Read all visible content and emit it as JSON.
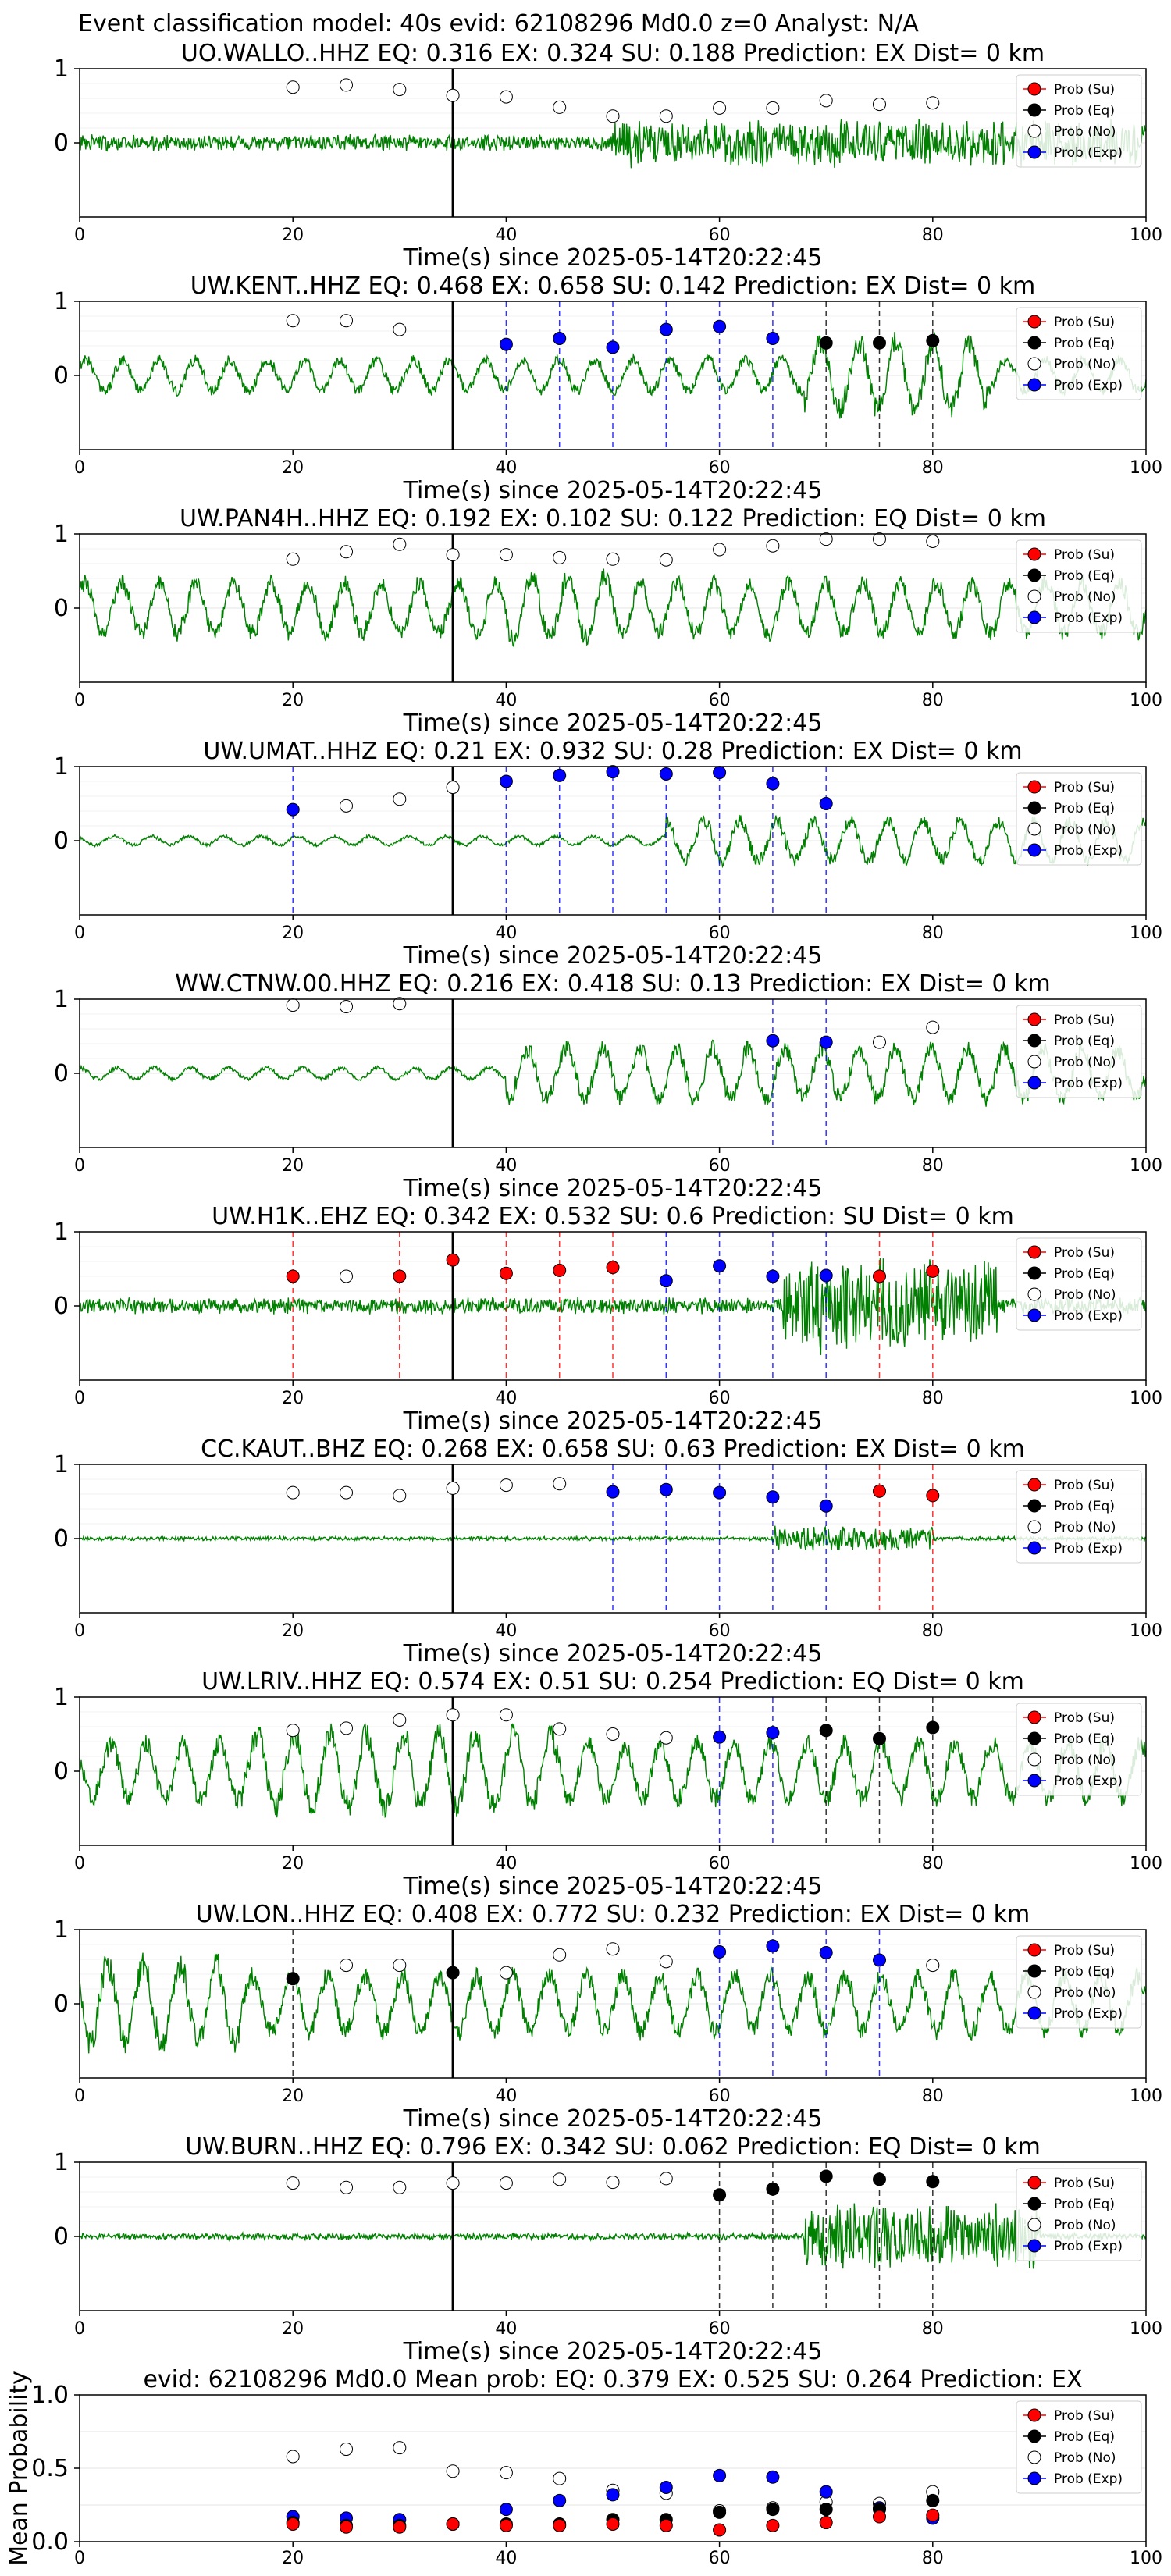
{
  "figure_title": "Event classification model: 40s evid: 62108296 Md0.0 z=0 Analyst: N/A",
  "colors": {
    "waveform": "#008000",
    "su": "#ff0000",
    "eq": "#000000",
    "no": "#ffffff",
    "exp": "#0000ff",
    "arrival_line": "#000000",
    "grid": "#e6e6e6"
  },
  "legend": {
    "placement": "upper-right",
    "entries": [
      {
        "key": "su",
        "label": "Prob (Su)"
      },
      {
        "key": "eq",
        "label": "Prob (Eq)"
      },
      {
        "key": "no",
        "label": "Prob (No)"
      },
      {
        "key": "exp",
        "label": "Prob (Exp)"
      }
    ]
  },
  "chart_data": [
    {
      "type": "line",
      "title": "UO.WALLO..HHZ   EQ: 0.316  EX: 0.324  SU: 0.188   Prediction: EX    Dist= 0 km",
      "xlabel": "Time(s) since 2025-05-14T20:22:45",
      "xlim": [
        0,
        100
      ],
      "ylim": [
        -1,
        1
      ],
      "x_ticks": [
        0,
        20,
        40,
        60,
        80,
        100
      ],
      "y_ticks": [
        0,
        1
      ],
      "arrival_time": 35,
      "waveform": {
        "amp": 0.12,
        "pattern": "noise",
        "burst_start": 50,
        "burst_end": 100,
        "burst_amp": 0.35,
        "seed": 11
      },
      "points": [
        {
          "t": 20,
          "p": 0.75,
          "cls": "no"
        },
        {
          "t": 25,
          "p": 0.78,
          "cls": "no"
        },
        {
          "t": 30,
          "p": 0.72,
          "cls": "no"
        },
        {
          "t": 35,
          "p": 0.64,
          "cls": "no"
        },
        {
          "t": 40,
          "p": 0.62,
          "cls": "no"
        },
        {
          "t": 45,
          "p": 0.48,
          "cls": "no"
        },
        {
          "t": 50,
          "p": 0.36,
          "cls": "no"
        },
        {
          "t": 55,
          "p": 0.36,
          "cls": "no"
        },
        {
          "t": 60,
          "p": 0.47,
          "cls": "no"
        },
        {
          "t": 65,
          "p": 0.47,
          "cls": "no"
        },
        {
          "t": 70,
          "p": 0.57,
          "cls": "no"
        },
        {
          "t": 75,
          "p": 0.52,
          "cls": "no"
        },
        {
          "t": 80,
          "p": 0.54,
          "cls": "no"
        }
      ]
    },
    {
      "type": "line",
      "title": "UW.KENT..HHZ   EQ: 0.468  EX: 0.658  SU: 0.142   Prediction: EX    Dist= 0 km",
      "xlabel": "Time(s) since 2025-05-14T20:22:45",
      "xlim": [
        0,
        100
      ],
      "ylim": [
        -1,
        1
      ],
      "x_ticks": [
        0,
        20,
        40,
        60,
        80,
        100
      ],
      "y_ticks": [
        0,
        1
      ],
      "arrival_time": 35,
      "waveform": {
        "amp": 0.28,
        "pattern": "wavy",
        "burst_start": 68,
        "burst_end": 85,
        "burst_amp": 0.6,
        "seed": 23
      },
      "points": [
        {
          "t": 20,
          "p": 0.74,
          "cls": "no"
        },
        {
          "t": 25,
          "p": 0.74,
          "cls": "no"
        },
        {
          "t": 30,
          "p": 0.62,
          "cls": "no"
        },
        {
          "t": 40,
          "p": 0.42,
          "cls": "exp"
        },
        {
          "t": 45,
          "p": 0.5,
          "cls": "exp"
        },
        {
          "t": 50,
          "p": 0.38,
          "cls": "exp"
        },
        {
          "t": 55,
          "p": 0.62,
          "cls": "exp"
        },
        {
          "t": 60,
          "p": 0.66,
          "cls": "exp"
        },
        {
          "t": 65,
          "p": 0.5,
          "cls": "exp"
        },
        {
          "t": 70,
          "p": 0.44,
          "cls": "eq"
        },
        {
          "t": 75,
          "p": 0.44,
          "cls": "eq"
        },
        {
          "t": 80,
          "p": 0.47,
          "cls": "eq"
        }
      ]
    },
    {
      "type": "line",
      "title": "UW.PAN4H..HHZ   EQ: 0.192  EX: 0.102  SU: 0.122   Prediction: EQ    Dist= 0 km",
      "xlabel": "Time(s) since 2025-05-14T20:22:45",
      "xlim": [
        0,
        100
      ],
      "ylim": [
        -1,
        1
      ],
      "x_ticks": [
        0,
        20,
        40,
        60,
        80,
        100
      ],
      "y_ticks": [
        0,
        1
      ],
      "arrival_time": 35,
      "waveform": {
        "amp": 0.45,
        "pattern": "wavy",
        "burst_start": 40,
        "burst_end": 50,
        "burst_amp": 0.55,
        "seed": 37
      },
      "points": [
        {
          "t": 20,
          "p": 0.66,
          "cls": "no"
        },
        {
          "t": 25,
          "p": 0.76,
          "cls": "no"
        },
        {
          "t": 30,
          "p": 0.86,
          "cls": "no"
        },
        {
          "t": 35,
          "p": 0.72,
          "cls": "no"
        },
        {
          "t": 40,
          "p": 0.72,
          "cls": "no"
        },
        {
          "t": 45,
          "p": 0.68,
          "cls": "no"
        },
        {
          "t": 50,
          "p": 0.66,
          "cls": "no"
        },
        {
          "t": 55,
          "p": 0.65,
          "cls": "no"
        },
        {
          "t": 60,
          "p": 0.79,
          "cls": "no"
        },
        {
          "t": 65,
          "p": 0.84,
          "cls": "no"
        },
        {
          "t": 70,
          "p": 0.93,
          "cls": "no"
        },
        {
          "t": 75,
          "p": 0.93,
          "cls": "no"
        },
        {
          "t": 80,
          "p": 0.9,
          "cls": "no"
        }
      ]
    },
    {
      "type": "line",
      "title": "UW.UMAT..HHZ   EQ: 0.21  EX: 0.932  SU: 0.28   Prediction: EX    Dist= 0 km",
      "xlabel": "Time(s) since 2025-05-14T20:22:45",
      "xlim": [
        0,
        100
      ],
      "ylim": [
        -1,
        1
      ],
      "x_ticks": [
        0,
        20,
        40,
        60,
        80,
        100
      ],
      "y_ticks": [
        0,
        1
      ],
      "arrival_time": 35,
      "waveform": {
        "amp": 0.08,
        "pattern": "wavy",
        "burst_start": 55,
        "burst_end": 100,
        "burst_amp": 0.35,
        "seed": 41
      },
      "points": [
        {
          "t": 20,
          "p": 0.42,
          "cls": "exp"
        },
        {
          "t": 25,
          "p": 0.47,
          "cls": "no"
        },
        {
          "t": 30,
          "p": 0.56,
          "cls": "no"
        },
        {
          "t": 35,
          "p": 0.72,
          "cls": "no"
        },
        {
          "t": 40,
          "p": 0.8,
          "cls": "exp"
        },
        {
          "t": 45,
          "p": 0.88,
          "cls": "exp"
        },
        {
          "t": 50,
          "p": 0.93,
          "cls": "exp"
        },
        {
          "t": 55,
          "p": 0.9,
          "cls": "exp"
        },
        {
          "t": 60,
          "p": 0.92,
          "cls": "exp"
        },
        {
          "t": 65,
          "p": 0.77,
          "cls": "exp"
        },
        {
          "t": 70,
          "p": 0.5,
          "cls": "exp"
        }
      ]
    },
    {
      "type": "line",
      "title": "WW.CTNW.00.HHZ   EQ: 0.216  EX: 0.418  SU: 0.13   Prediction: EX    Dist= 0 km",
      "xlabel": "Time(s) since 2025-05-14T20:22:45",
      "xlim": [
        0,
        100
      ],
      "ylim": [
        -1,
        1
      ],
      "x_ticks": [
        0,
        20,
        40,
        60,
        80,
        100
      ],
      "y_ticks": [
        0,
        1
      ],
      "arrival_time": 35,
      "waveform": {
        "amp": 0.1,
        "pattern": "wavy",
        "burst_start": 40,
        "burst_end": 100,
        "burst_amp": 0.45,
        "seed": 53
      },
      "points": [
        {
          "t": 20,
          "p": 0.92,
          "cls": "no"
        },
        {
          "t": 25,
          "p": 0.9,
          "cls": "no"
        },
        {
          "t": 30,
          "p": 0.94,
          "cls": "no"
        },
        {
          "t": 65,
          "p": 0.44,
          "cls": "exp"
        },
        {
          "t": 70,
          "p": 0.42,
          "cls": "exp"
        },
        {
          "t": 75,
          "p": 0.42,
          "cls": "no"
        },
        {
          "t": 80,
          "p": 0.62,
          "cls": "no"
        }
      ]
    },
    {
      "type": "line",
      "title": "UW.H1K..EHZ   EQ: 0.342  EX: 0.532  SU: 0.6   Prediction: SU    Dist= 0 km",
      "xlabel": "Time(s) since 2025-05-14T20:22:45",
      "xlim": [
        0,
        100
      ],
      "ylim": [
        -1,
        1
      ],
      "x_ticks": [
        0,
        20,
        40,
        60,
        80,
        100
      ],
      "y_ticks": [
        0,
        1
      ],
      "arrival_time": 35,
      "waveform": {
        "amp": 0.12,
        "pattern": "noise",
        "burst_start": 66,
        "burst_end": 86,
        "burst_amp": 0.7,
        "seed": 67
      },
      "points": [
        {
          "t": 20,
          "p": 0.4,
          "cls": "su"
        },
        {
          "t": 25,
          "p": 0.4,
          "cls": "no"
        },
        {
          "t": 30,
          "p": 0.4,
          "cls": "su"
        },
        {
          "t": 35,
          "p": 0.62,
          "cls": "su"
        },
        {
          "t": 40,
          "p": 0.44,
          "cls": "su"
        },
        {
          "t": 45,
          "p": 0.48,
          "cls": "su"
        },
        {
          "t": 50,
          "p": 0.52,
          "cls": "su"
        },
        {
          "t": 55,
          "p": 0.34,
          "cls": "exp"
        },
        {
          "t": 60,
          "p": 0.54,
          "cls": "exp"
        },
        {
          "t": 65,
          "p": 0.4,
          "cls": "exp"
        },
        {
          "t": 70,
          "p": 0.41,
          "cls": "exp"
        },
        {
          "t": 75,
          "p": 0.4,
          "cls": "su"
        },
        {
          "t": 80,
          "p": 0.47,
          "cls": "su"
        }
      ]
    },
    {
      "type": "line",
      "title": "CC.KAUT..BHZ   EQ: 0.268  EX: 0.658  SU: 0.63   Prediction: EX    Dist= 0 km",
      "xlabel": "Time(s) since 2025-05-14T20:22:45",
      "xlim": [
        0,
        100
      ],
      "ylim": [
        -1,
        1
      ],
      "x_ticks": [
        0,
        20,
        40,
        60,
        80,
        100
      ],
      "y_ticks": [
        0,
        1
      ],
      "arrival_time": 35,
      "waveform": {
        "amp": 0.03,
        "pattern": "noise",
        "burst_start": 65,
        "burst_end": 80,
        "burst_amp": 0.18,
        "seed": 79
      },
      "points": [
        {
          "t": 20,
          "p": 0.62,
          "cls": "no"
        },
        {
          "t": 25,
          "p": 0.62,
          "cls": "no"
        },
        {
          "t": 30,
          "p": 0.58,
          "cls": "no"
        },
        {
          "t": 35,
          "p": 0.68,
          "cls": "no"
        },
        {
          "t": 40,
          "p": 0.72,
          "cls": "no"
        },
        {
          "t": 45,
          "p": 0.74,
          "cls": "no"
        },
        {
          "t": 50,
          "p": 0.63,
          "cls": "exp"
        },
        {
          "t": 55,
          "p": 0.66,
          "cls": "exp"
        },
        {
          "t": 60,
          "p": 0.62,
          "cls": "exp"
        },
        {
          "t": 65,
          "p": 0.56,
          "cls": "exp"
        },
        {
          "t": 70,
          "p": 0.44,
          "cls": "exp"
        },
        {
          "t": 75,
          "p": 0.64,
          "cls": "su"
        },
        {
          "t": 80,
          "p": 0.58,
          "cls": "su"
        }
      ]
    },
    {
      "type": "line",
      "title": "UW.LRIV..HHZ   EQ: 0.574  EX: 0.51  SU: 0.254   Prediction: EQ    Dist= 0 km",
      "xlabel": "Time(s) since 2025-05-14T20:22:45",
      "xlim": [
        0,
        100
      ],
      "ylim": [
        -1,
        1
      ],
      "x_ticks": [
        0,
        20,
        40,
        60,
        80,
        100
      ],
      "y_ticks": [
        0,
        1
      ],
      "arrival_time": 35,
      "waveform": {
        "amp": 0.5,
        "pattern": "wavy",
        "burst_start": 15,
        "burst_end": 45,
        "burst_amp": 0.65,
        "seed": 83
      },
      "points": [
        {
          "t": 20,
          "p": 0.55,
          "cls": "no"
        },
        {
          "t": 25,
          "p": 0.58,
          "cls": "no"
        },
        {
          "t": 30,
          "p": 0.69,
          "cls": "no"
        },
        {
          "t": 35,
          "p": 0.76,
          "cls": "no"
        },
        {
          "t": 40,
          "p": 0.76,
          "cls": "no"
        },
        {
          "t": 45,
          "p": 0.57,
          "cls": "no"
        },
        {
          "t": 50,
          "p": 0.5,
          "cls": "no"
        },
        {
          "t": 55,
          "p": 0.45,
          "cls": "no"
        },
        {
          "t": 60,
          "p": 0.46,
          "cls": "exp"
        },
        {
          "t": 65,
          "p": 0.52,
          "cls": "exp"
        },
        {
          "t": 70,
          "p": 0.55,
          "cls": "eq"
        },
        {
          "t": 75,
          "p": 0.44,
          "cls": "eq"
        },
        {
          "t": 80,
          "p": 0.59,
          "cls": "eq"
        }
      ]
    },
    {
      "type": "line",
      "title": "UW.LON..HHZ   EQ: 0.408  EX: 0.772  SU: 0.232   Prediction: EX    Dist= 0 km",
      "xlabel": "Time(s) since 2025-05-14T20:22:45",
      "xlim": [
        0,
        100
      ],
      "ylim": [
        -1,
        1
      ],
      "x_ticks": [
        0,
        20,
        40,
        60,
        80,
        100
      ],
      "y_ticks": [
        0,
        1
      ],
      "arrival_time": 35,
      "waveform": {
        "amp": 0.5,
        "pattern": "wavy",
        "burst_start": 0,
        "burst_end": 15,
        "burst_amp": 0.7,
        "seed": 97
      },
      "points": [
        {
          "t": 20,
          "p": 0.34,
          "cls": "eq"
        },
        {
          "t": 25,
          "p": 0.52,
          "cls": "no"
        },
        {
          "t": 30,
          "p": 0.52,
          "cls": "no"
        },
        {
          "t": 35,
          "p": 0.42,
          "cls": "eq"
        },
        {
          "t": 40,
          "p": 0.42,
          "cls": "no"
        },
        {
          "t": 45,
          "p": 0.66,
          "cls": "no"
        },
        {
          "t": 50,
          "p": 0.74,
          "cls": "no"
        },
        {
          "t": 55,
          "p": 0.57,
          "cls": "no"
        },
        {
          "t": 60,
          "p": 0.7,
          "cls": "exp"
        },
        {
          "t": 65,
          "p": 0.78,
          "cls": "exp"
        },
        {
          "t": 70,
          "p": 0.69,
          "cls": "exp"
        },
        {
          "t": 75,
          "p": 0.59,
          "cls": "exp"
        },
        {
          "t": 80,
          "p": 0.52,
          "cls": "no"
        }
      ]
    },
    {
      "type": "line",
      "title": "UW.BURN..HHZ   EQ: 0.796  EX: 0.342  SU: 0.062   Prediction: EQ    Dist= 0 km",
      "xlabel": "Time(s) since 2025-05-14T20:22:45",
      "xlim": [
        0,
        100
      ],
      "ylim": [
        -1,
        1
      ],
      "x_ticks": [
        0,
        20,
        40,
        60,
        80,
        100
      ],
      "y_ticks": [
        0,
        1
      ],
      "arrival_time": 35,
      "waveform": {
        "amp": 0.05,
        "pattern": "noise",
        "burst_start": 68,
        "burst_end": 90,
        "burst_amp": 0.5,
        "seed": 101
      },
      "points": [
        {
          "t": 20,
          "p": 0.72,
          "cls": "no"
        },
        {
          "t": 25,
          "p": 0.66,
          "cls": "no"
        },
        {
          "t": 30,
          "p": 0.66,
          "cls": "no"
        },
        {
          "t": 35,
          "p": 0.72,
          "cls": "no"
        },
        {
          "t": 40,
          "p": 0.72,
          "cls": "no"
        },
        {
          "t": 45,
          "p": 0.77,
          "cls": "no"
        },
        {
          "t": 50,
          "p": 0.73,
          "cls": "no"
        },
        {
          "t": 55,
          "p": 0.78,
          "cls": "no"
        },
        {
          "t": 60,
          "p": 0.56,
          "cls": "eq"
        },
        {
          "t": 65,
          "p": 0.64,
          "cls": "eq"
        },
        {
          "t": 70,
          "p": 0.81,
          "cls": "eq"
        },
        {
          "t": 75,
          "p": 0.77,
          "cls": "eq"
        },
        {
          "t": 80,
          "p": 0.74,
          "cls": "eq"
        }
      ]
    },
    {
      "type": "scatter",
      "title": "evid: 62108296  Md0.0   Mean prob:   EQ: 0.379  EX: 0.525  SU: 0.264   Prediction: EX",
      "xlabel": "",
      "ylabel": "Mean Probability",
      "xlim": [
        0,
        100
      ],
      "ylim": [
        0,
        1
      ],
      "x_ticks": [
        0,
        20,
        40,
        60,
        80,
        100
      ],
      "y_ticks": [
        0.0,
        0.5,
        1.0
      ],
      "y_tick_labels": [
        "0.0",
        "0.5",
        "1.0"
      ],
      "x": [
        20,
        25,
        30,
        35,
        40,
        45,
        50,
        55,
        60,
        65,
        70,
        75,
        80
      ],
      "series": [
        {
          "key": "no",
          "name": "Prob (No)",
          "values": [
            0.58,
            0.63,
            0.64,
            0.48,
            0.47,
            0.43,
            0.35,
            0.33,
            0.21,
            0.23,
            0.27,
            0.26,
            0.34
          ]
        },
        {
          "key": "exp",
          "name": "Prob (Exp)",
          "values": [
            0.17,
            0.16,
            0.15,
            0.12,
            0.22,
            0.28,
            0.32,
            0.37,
            0.45,
            0.44,
            0.34,
            0.23,
            0.16
          ]
        },
        {
          "key": "eq",
          "name": "Prob (Eq)",
          "values": [
            0.13,
            0.11,
            0.11,
            0.12,
            0.12,
            0.12,
            0.15,
            0.15,
            0.2,
            0.22,
            0.22,
            0.22,
            0.28
          ]
        },
        {
          "key": "su",
          "name": "Prob (Su)",
          "values": [
            0.12,
            0.1,
            0.1,
            0.12,
            0.11,
            0.11,
            0.12,
            0.11,
            0.08,
            0.11,
            0.13,
            0.17,
            0.18
          ]
        }
      ]
    }
  ]
}
